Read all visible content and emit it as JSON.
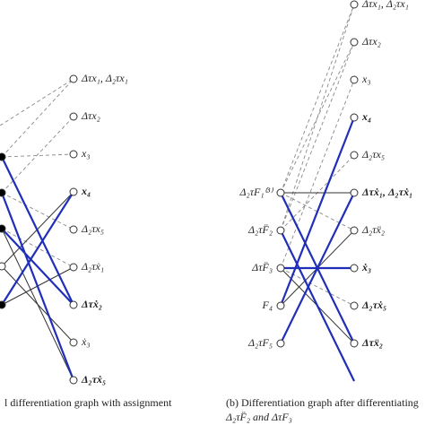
{
  "left_graph": {
    "right_nodes": [
      "Δτx₁, Δ₂τx₁",
      "Δτx₂",
      "x₃",
      "x₄",
      "Δ₂τx₅",
      "Δ₂τẋ₁",
      "Δτẋ₂",
      "ẋ₃",
      "Δ₂τẋ₅"
    ],
    "caption": "l differentiation graph with assignment"
  },
  "right_graph": {
    "left_nodes": [
      "Δ₂τF₁⁽³⁾",
      "Δ₂τF̈₂",
      "ΔτF̈₃",
      "F₄",
      "Δ₂τF₅"
    ],
    "right_nodes": [
      "Δτx₁, Δ₂τx₁",
      "Δτx₂",
      "x₃",
      "x₄",
      "Δ₂τx₅",
      "Δτẋ₁, Δ₂τẋ₁",
      "Δ₂τẍ₂",
      "ẋ₃",
      "Δ₂τẋ₅",
      "Δτẍ₂"
    ],
    "caption": [
      "(b) Differentiation graph after differentiating",
      "Δ₂τF̈₂ and ΔτF₃"
    ]
  }
}
